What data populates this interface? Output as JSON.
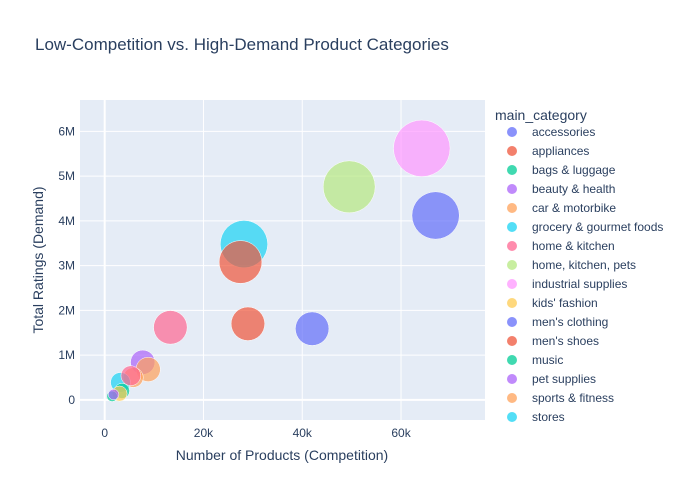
{
  "chart_data": {
    "type": "scatter",
    "title": "Low-Competition vs. High-Demand Product Categories",
    "xlabel": "Number of Products (Competition)",
    "ylabel": "Total Ratings (Demand)",
    "xlim": [
      -5000,
      77000
    ],
    "ylim": [
      -450000,
      6700000
    ],
    "x_ticks": [
      0,
      20000,
      40000,
      60000
    ],
    "x_tick_labels": [
      "0",
      "20k",
      "40k",
      "60k"
    ],
    "y_ticks": [
      0,
      1000000,
      2000000,
      3000000,
      4000000,
      5000000,
      6000000
    ],
    "y_tick_labels": [
      "0",
      "1M",
      "2M",
      "3M",
      "4M",
      "5M",
      "6M"
    ],
    "grid": true,
    "legend_title": "main_category",
    "legend_placement": "right",
    "series": [
      {
        "name": "accessories",
        "color": "#636efa",
        "points": [
          {
            "x": 67000,
            "y": 4120000,
            "size": 9
          }
        ]
      },
      {
        "name": "appliances",
        "color": "#EF553B",
        "points": [
          {
            "x": 27500,
            "y": 3080000,
            "size": 8
          }
        ]
      },
      {
        "name": "bags & luggage",
        "color": "#00cc96",
        "points": [
          {
            "x": 3500,
            "y": 200000,
            "size": 2
          }
        ]
      },
      {
        "name": "beauty & health",
        "color": "#ab63fa",
        "points": [
          {
            "x": 7700,
            "y": 840000,
            "size": 4
          }
        ]
      },
      {
        "name": "car & motorbike",
        "color": "#FFA15A",
        "points": [
          {
            "x": 8800,
            "y": 680000,
            "size": 4
          }
        ]
      },
      {
        "name": "grocery & gourmet foods",
        "color": "#19d3f3",
        "points": [
          {
            "x": 28200,
            "y": 3480000,
            "size": 9
          }
        ]
      },
      {
        "name": "home & kitchen",
        "color": "#FF6692",
        "points": [
          {
            "x": 13300,
            "y": 1620000,
            "size": 6
          }
        ]
      },
      {
        "name": "home, kitchen, pets",
        "color": "#B6E880",
        "points": [
          {
            "x": 49500,
            "y": 4760000,
            "size": 10
          }
        ]
      },
      {
        "name": "industrial supplies",
        "color": "#FF97FF",
        "points": [
          {
            "x": 64200,
            "y": 5620000,
            "size": 11
          }
        ]
      },
      {
        "name": "kids' fashion",
        "color": "#FECB52",
        "points": [
          {
            "x": 3000,
            "y": 140000,
            "size": 2
          }
        ]
      },
      {
        "name": "men's clothing",
        "color": "#636efa",
        "points": [
          {
            "x": 42000,
            "y": 1590000,
            "size": 6
          }
        ]
      },
      {
        "name": "men's shoes",
        "color": "#EF553B",
        "points": [
          {
            "x": 29000,
            "y": 1700000,
            "size": 6
          }
        ]
      },
      {
        "name": "music",
        "color": "#00cc96",
        "points": [
          {
            "x": 1500,
            "y": 80000,
            "size": 1
          }
        ]
      },
      {
        "name": "pet supplies",
        "color": "#ab63fa",
        "points": [
          {
            "x": 1800,
            "y": 120000,
            "size": 1
          }
        ]
      },
      {
        "name": "sports & fitness",
        "color": "#FFA15A",
        "points": [
          {
            "x": 5800,
            "y": 500000,
            "size": 3
          }
        ]
      },
      {
        "name": "stores",
        "color": "#19d3f3",
        "points": [
          {
            "x": 3200,
            "y": 390000,
            "size": 3
          }
        ]
      },
      {
        "name": "home & kitchen",
        "color": "#FF6692",
        "legend": false,
        "points": [
          {
            "x": 5300,
            "y": 540000,
            "size": 3
          }
        ]
      }
    ]
  }
}
